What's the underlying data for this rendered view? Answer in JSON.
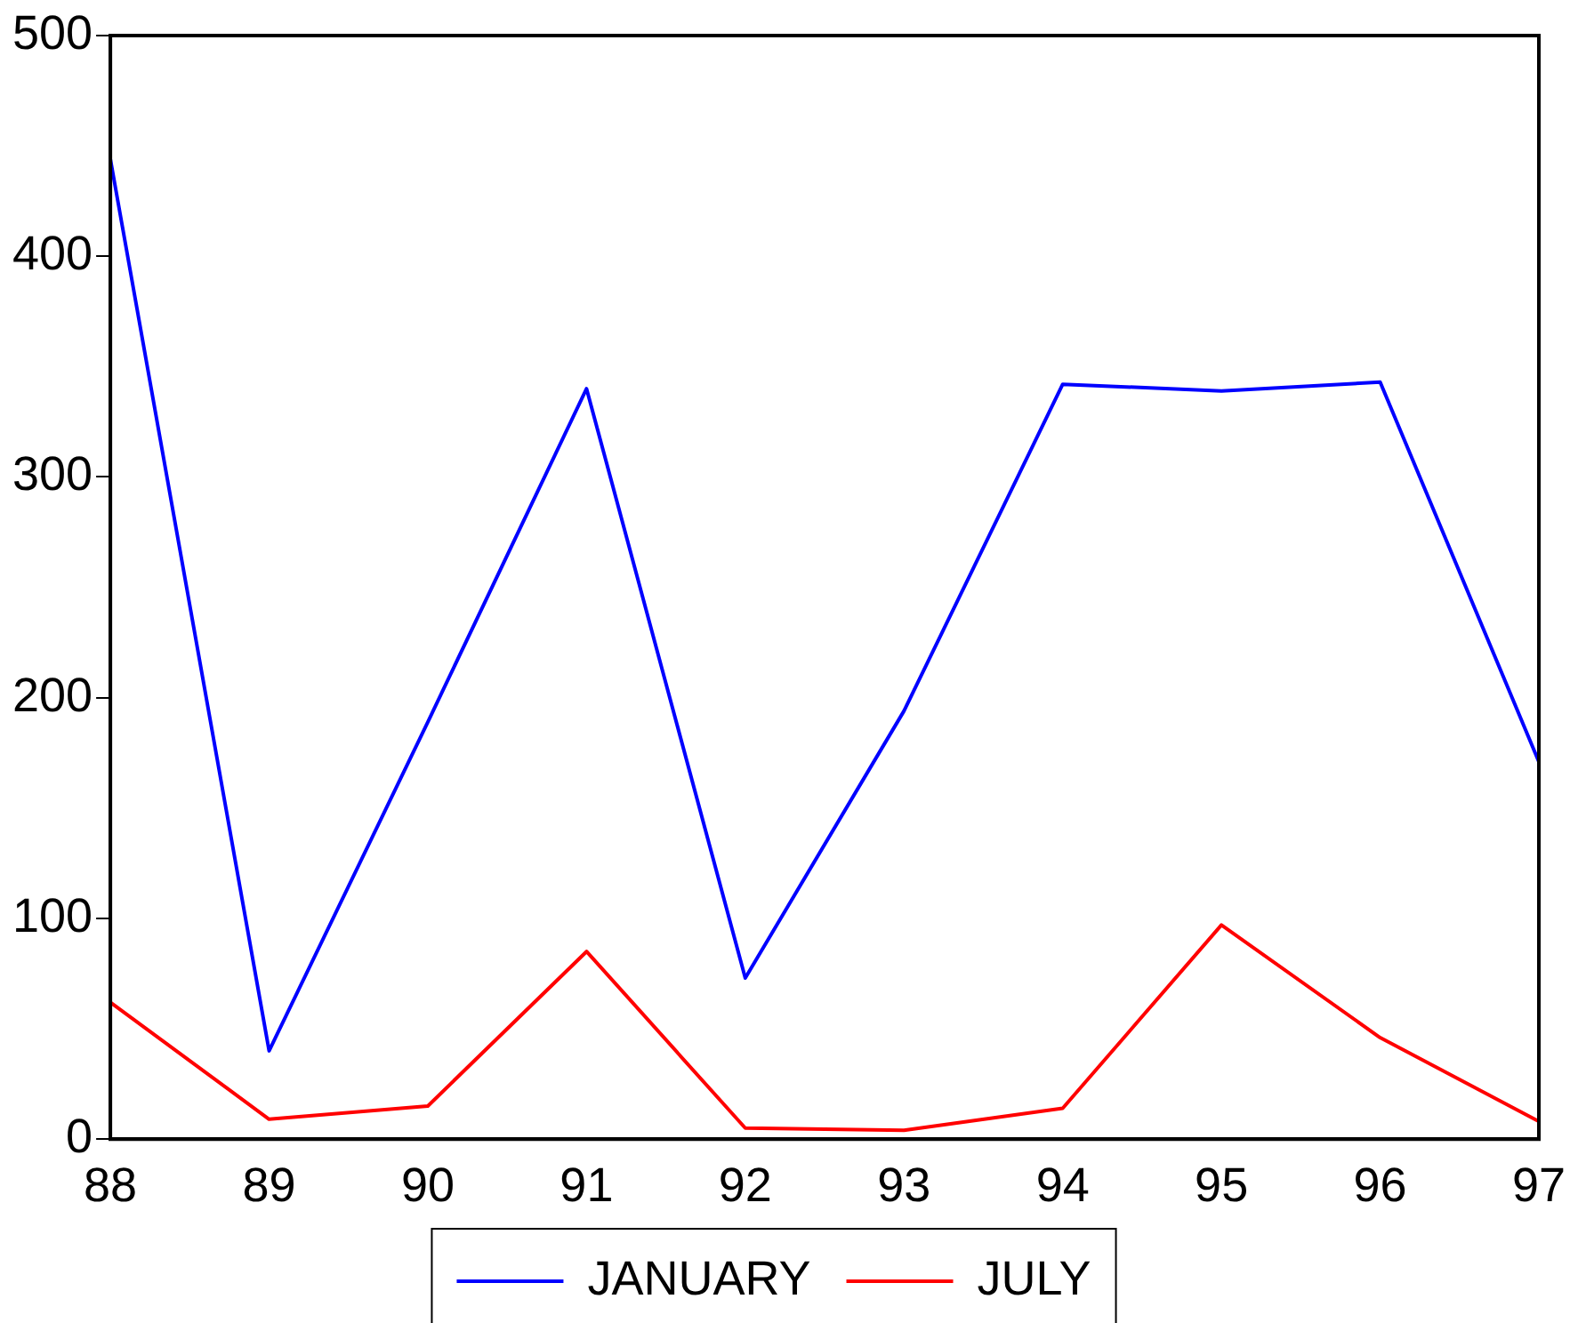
{
  "chart_data": {
    "type": "line",
    "categories": [
      "88",
      "89",
      "90",
      "91",
      "92",
      "93",
      "94",
      "95",
      "96",
      "97"
    ],
    "series": [
      {
        "name": "JANUARY",
        "color": "#0000ff",
        "values": [
          444,
          40,
          189,
          340,
          73,
          194,
          342,
          339,
          343,
          171
        ]
      },
      {
        "name": "JULY",
        "color": "#ff0000",
        "values": [
          62,
          9,
          15,
          85,
          5,
          4,
          14,
          97,
          46,
          8
        ]
      }
    ],
    "ylim": [
      0,
      500
    ],
    "yticks": [
      0,
      100,
      200,
      300,
      400,
      500
    ],
    "grid": false,
    "legend": "bottom",
    "marker": "none",
    "line_style": "solid"
  }
}
